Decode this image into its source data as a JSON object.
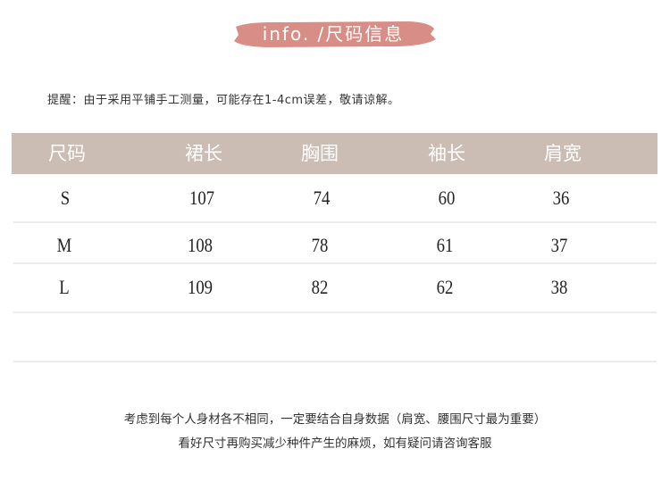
{
  "banner": {
    "title": "info. /尺码信息",
    "color": "#d88e86"
  },
  "note": "提醒：由于采用平铺手工测量，可能存在1-4cm误差，敬请谅解。",
  "table": {
    "header_color": "#cbbdb4",
    "columns": [
      "尺码",
      "裙长",
      "胸围",
      "袖长",
      "肩宽"
    ],
    "rows": [
      [
        "S",
        "107",
        "74",
        "60",
        "36"
      ],
      [
        "M",
        "108",
        "78",
        "61",
        "37"
      ],
      [
        "L",
        "109",
        "82",
        "62",
        "38"
      ]
    ]
  },
  "footer": {
    "line1": "考虑到每个人身材各不相同，一定要结合自身数据（肩宽、腰围尺寸最为重要）",
    "line2": "看好尺寸再购买减少种件产生的麻烦，如有疑问请咨询客服"
  }
}
